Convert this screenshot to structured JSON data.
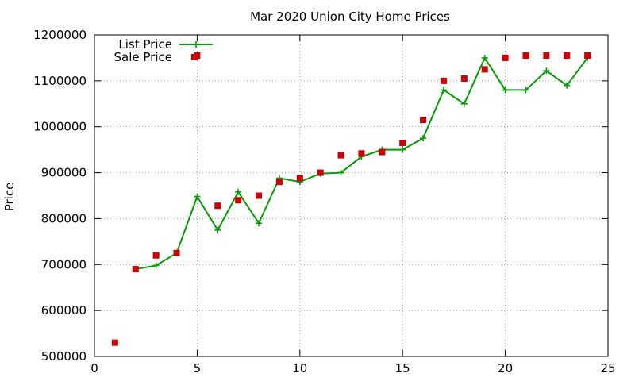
{
  "chart_data": {
    "type": "line",
    "title": "Mar 2020 Union City Home Prices",
    "xlabel": "",
    "ylabel": "Price",
    "xlim": [
      0,
      25
    ],
    "ylim": [
      500000,
      1200000
    ],
    "x_ticks": [
      0,
      5,
      10,
      15,
      20,
      25
    ],
    "y_ticks": [
      500000,
      600000,
      700000,
      800000,
      900000,
      1000000,
      1100000,
      1200000
    ],
    "grid": true,
    "legend_position": "top-left",
    "x": [
      1,
      2,
      3,
      4,
      5,
      6,
      7,
      8,
      9,
      10,
      11,
      12,
      13,
      14,
      15,
      16,
      17,
      18,
      19,
      20,
      21,
      22,
      23,
      24
    ],
    "series": [
      {
        "name": "List Price",
        "style": "line-with-plus-markers",
        "color": "#00a000",
        "values": [
          null,
          690000,
          698000,
          725000,
          848000,
          775000,
          858000,
          790000,
          888000,
          880000,
          898000,
          900000,
          935000,
          950000,
          950000,
          975000,
          1080000,
          1050000,
          1150000,
          1080000,
          1080000,
          1122000,
          1090000,
          1150000
        ]
      },
      {
        "name": "Sale Price",
        "style": "square-markers",
        "color": "#cc0000",
        "values": [
          530000,
          690000,
          720000,
          725000,
          1155000,
          828000,
          840000,
          850000,
          880000,
          888000,
          900000,
          938000,
          942000,
          945000,
          965000,
          1015000,
          1100000,
          1105000,
          1125000,
          1150000,
          1155000,
          1155000,
          1155000,
          1155000
        ]
      }
    ]
  }
}
